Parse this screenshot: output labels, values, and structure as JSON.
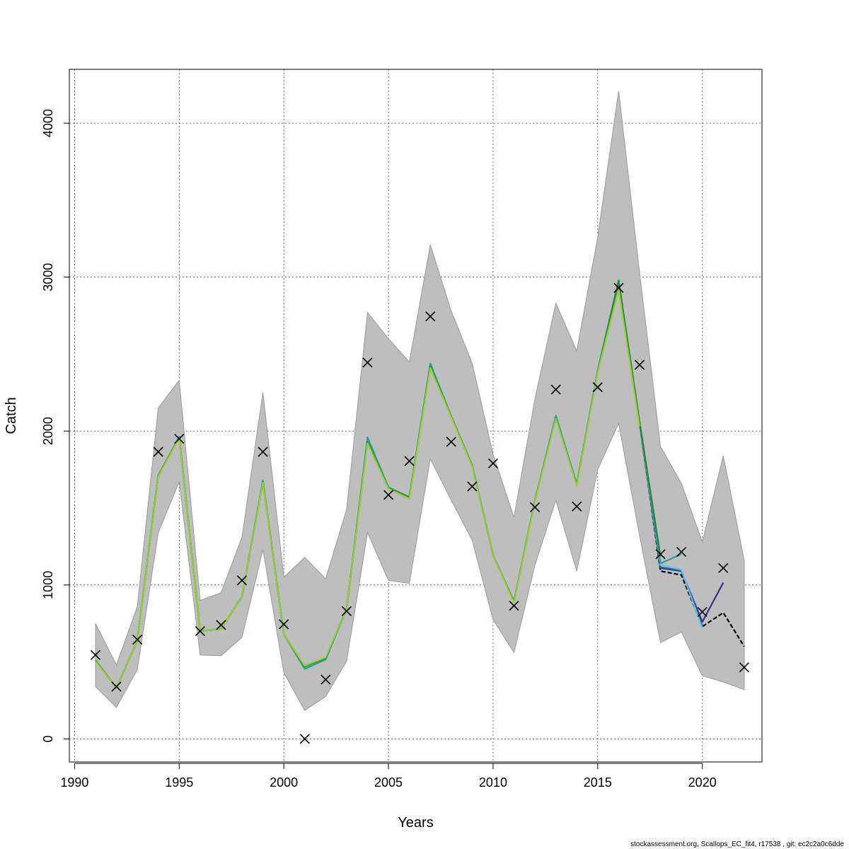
{
  "chart_data": {
    "type": "line",
    "xlabel": "Years",
    "ylabel": "Catch",
    "xlim": [
      1990,
      2022
    ],
    "ylim": [
      -150,
      4350
    ],
    "x_ticks": [
      1990,
      1995,
      2000,
      2005,
      2010,
      2015,
      2020
    ],
    "y_ticks": [
      0,
      1000,
      2000,
      3000,
      4000
    ],
    "grid": true,
    "band": {
      "color": "#bebebe",
      "x": [
        1991,
        1992,
        1993,
        1994,
        1995,
        1996,
        1997,
        1998,
        1999,
        2000,
        2001,
        2002,
        2003,
        2004,
        2005,
        2006,
        2007,
        2008,
        2009,
        2010,
        2011,
        2012,
        2013,
        2014,
        2015,
        2016,
        2017,
        2018,
        2019,
        2020,
        2021,
        2022
      ],
      "upper": [
        750,
        480,
        860,
        2150,
        2330,
        900,
        950,
        1310,
        2250,
        1050,
        1180,
        1040,
        1490,
        2770,
        2600,
        2450,
        3210,
        2780,
        2440,
        1850,
        1440,
        2210,
        2830,
        2520,
        3260,
        4210,
        3030,
        1900,
        1660,
        1280,
        1840,
        1160
      ],
      "lower": [
        340,
        205,
        450,
        1340,
        1670,
        545,
        540,
        660,
        1230,
        430,
        185,
        275,
        505,
        1340,
        1030,
        1010,
        1820,
        1550,
        1290,
        775,
        560,
        1130,
        1550,
        1090,
        1750,
        2050,
        1320,
        625,
        695,
        410,
        370,
        320
      ]
    },
    "series": [
      {
        "color": "#000000",
        "dashed": true,
        "x": [
          1991,
          1992,
          1993,
          1994,
          1995,
          1996,
          1997,
          1998,
          1999,
          2000,
          2001,
          2002,
          2003,
          2004,
          2005,
          2006,
          2007,
          2008,
          2009,
          2010,
          2011,
          2012,
          2013,
          2014,
          2015,
          2016,
          2017,
          2018,
          2019,
          2020,
          2021,
          2022
        ],
        "values": [
          510,
          330,
          640,
          1710,
          1960,
          700,
          715,
          925,
          1670,
          680,
          470,
          525,
          845,
          1930,
          1630,
          1570,
          2420,
          2095,
          1775,
          1195,
          890,
          1550,
          2090,
          1655,
          2385,
          2960,
          2050,
          1090,
          1065,
          730,
          820,
          600
        ]
      },
      {
        "color": "#3d2a8a",
        "dashed": false,
        "x": [
          1991,
          1992,
          1993,
          1994,
          1995,
          1996,
          1997,
          1998,
          1999,
          2000,
          2001,
          2002,
          2003,
          2004,
          2005,
          2006,
          2007,
          2008,
          2009,
          2010,
          2011,
          2012,
          2013,
          2014,
          2015,
          2016,
          2017,
          2018,
          2019,
          2020,
          2021
        ],
        "values": [
          510,
          330,
          640,
          1710,
          1960,
          700,
          715,
          925,
          1670,
          680,
          470,
          525,
          845,
          1930,
          1630,
          1570,
          2420,
          2095,
          1775,
          1195,
          890,
          1550,
          2090,
          1655,
          2385,
          2960,
          2050,
          1110,
          1090,
          760,
          1015
        ]
      },
      {
        "color": "#2f5fa8",
        "dashed": false,
        "x": [
          1991,
          1992,
          1993,
          1994,
          1995,
          1996,
          1997,
          1998,
          1999,
          2000,
          2001,
          2002,
          2003,
          2004,
          2005,
          2006,
          2007,
          2008,
          2009,
          2010,
          2011,
          2012,
          2013,
          2014,
          2015,
          2016,
          2017,
          2018,
          2019,
          2020
        ],
        "values": [
          510,
          330,
          640,
          1710,
          1960,
          700,
          715,
          925,
          1670,
          680,
          470,
          525,
          845,
          1935,
          1630,
          1570,
          2425,
          2095,
          1775,
          1195,
          890,
          1550,
          2090,
          1655,
          2385,
          2965,
          2050,
          1115,
          1095,
          735
        ]
      },
      {
        "color": "#5ec8e6",
        "dashed": false,
        "x": [
          1991,
          1992,
          1993,
          1994,
          1995,
          1996,
          1997,
          1998,
          1999,
          2000,
          2001,
          2002,
          2003,
          2004,
          2005,
          2006,
          2007,
          2008,
          2009,
          2010,
          2011,
          2012,
          2013,
          2014,
          2015,
          2016,
          2017,
          2018,
          2019,
          2020
        ],
        "values": [
          510,
          330,
          640,
          1710,
          1960,
          700,
          715,
          925,
          1675,
          680,
          465,
          520,
          845,
          1950,
          1635,
          1570,
          2430,
          2095,
          1775,
          1195,
          890,
          1550,
          2095,
          1655,
          2390,
          2970,
          2055,
          1130,
          1100,
          715
        ]
      },
      {
        "color": "#2aa198",
        "dashed": false,
        "x": [
          1991,
          1992,
          1993,
          1994,
          1995,
          1996,
          1997,
          1998,
          1999,
          2000,
          2001,
          2002,
          2003,
          2004,
          2005,
          2006,
          2007,
          2008,
          2009,
          2010,
          2011,
          2012,
          2013,
          2014,
          2015,
          2016,
          2017,
          2018,
          2019
        ],
        "values": [
          510,
          330,
          640,
          1710,
          1960,
          700,
          715,
          925,
          1680,
          680,
          455,
          515,
          845,
          1960,
          1635,
          1570,
          2440,
          2095,
          1775,
          1195,
          890,
          1550,
          2100,
          1655,
          2395,
          2980,
          2060,
          1140,
          1200
        ]
      },
      {
        "color": "#1f8a3a",
        "dashed": false,
        "x": [
          1991,
          1992,
          1993,
          1994,
          1995,
          1996,
          1997,
          1998,
          1999,
          2000,
          2001,
          2002,
          2003,
          2004,
          2005,
          2006,
          2007,
          2008,
          2009,
          2010,
          2011,
          2012,
          2013,
          2014,
          2015,
          2016,
          2017,
          2018
        ],
        "values": [
          510,
          330,
          640,
          1710,
          1960,
          700,
          715,
          925,
          1670,
          680,
          470,
          525,
          845,
          1930,
          1630,
          1570,
          2420,
          2095,
          1775,
          1195,
          890,
          1550,
          2085,
          1650,
          2385,
          2975,
          2060,
          1185
        ]
      },
      {
        "color": "#9acd32",
        "dashed": false,
        "x": [
          1991,
          1992,
          1993,
          1994,
          1995,
          1996,
          1997,
          1998,
          1999,
          2000,
          2001,
          2002,
          2003,
          2004,
          2005,
          2006,
          2007,
          2008,
          2009,
          2010,
          2011,
          2012,
          2013,
          2014,
          2015,
          2016,
          2017
        ],
        "values": [
          505,
          330,
          640,
          1705,
          1955,
          700,
          715,
          925,
          1665,
          680,
          475,
          530,
          845,
          1920,
          1625,
          1560,
          2410,
          2090,
          1770,
          1195,
          885,
          1545,
          2080,
          1645,
          2380,
          2920,
          2030
        ]
      }
    ],
    "observations": {
      "marker": "x",
      "x": [
        1991,
        1992,
        1993,
        1994,
        1995,
        1996,
        1997,
        1998,
        1999,
        2000,
        2001,
        2002,
        2003,
        2004,
        2005,
        2006,
        2007,
        2008,
        2009,
        2010,
        2011,
        2012,
        2013,
        2014,
        2015,
        2016,
        2017,
        2018,
        2019,
        2020,
        2021,
        2022
      ],
      "values": [
        545,
        340,
        645,
        1865,
        1950,
        700,
        740,
        1030,
        1865,
        745,
        0,
        385,
        830,
        2445,
        1585,
        1805,
        2745,
        1930,
        1640,
        1790,
        865,
        1505,
        2270,
        1510,
        2285,
        2930,
        2430,
        1200,
        1215,
        825,
        1110,
        465
      ]
    }
  },
  "footer": "stockassessment.org, Scallops_EC_fit4, r17538 , git: ec2c2a0c6dde"
}
